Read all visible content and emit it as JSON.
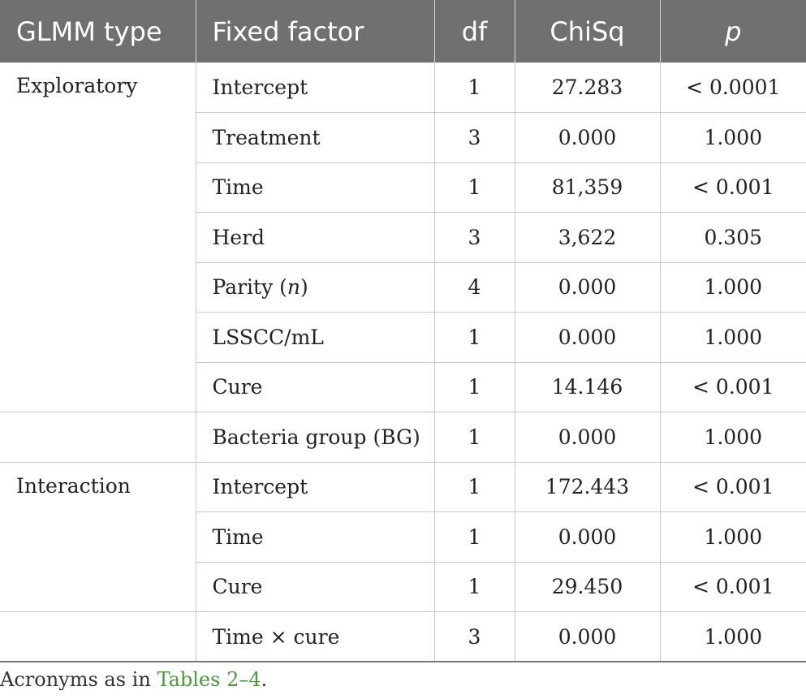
{
  "table": {
    "headers": [
      "GLMM type",
      "Fixed factor",
      "df",
      "ChiSq",
      "p"
    ],
    "groups": [
      {
        "type": "Exploratory",
        "rows": [
          {
            "factor": "Intercept",
            "df": "1",
            "chisq": "27.283",
            "p": "< 0.0001"
          },
          {
            "factor": "Treatment",
            "df": "3",
            "chisq": "0.000",
            "p": "1.000"
          },
          {
            "factor": "Time",
            "df": "1",
            "chisq": "81,359",
            "p": "< 0.001"
          },
          {
            "factor": "Herd",
            "df": "3",
            "chisq": "3,622",
            "p": "0.305"
          },
          {
            "factor_prefix": "Parity (",
            "factor_italic": "n",
            "factor_suffix": ")",
            "df": "4",
            "chisq": "0.000",
            "p": "1.000"
          },
          {
            "factor": "LSSCC/mL",
            "df": "1",
            "chisq": "0.000",
            "p": "1.000"
          },
          {
            "factor": "Cure",
            "df": "1",
            "chisq": "14.146",
            "p": "< 0.001"
          }
        ]
      },
      {
        "type": "",
        "rows": [
          {
            "factor": "Bacteria group (BG)",
            "df": "1",
            "chisq": "0.000",
            "p": "1.000"
          }
        ]
      },
      {
        "type": "Interaction",
        "rows": [
          {
            "factor": "Intercept",
            "df": "1",
            "chisq": "172.443",
            "p": "< 0.001"
          },
          {
            "factor": "Time",
            "df": "1",
            "chisq": "0.000",
            "p": "1.000"
          },
          {
            "factor": "Cure",
            "df": "1",
            "chisq": "29.450",
            "p": "< 0.001"
          }
        ]
      },
      {
        "type": "",
        "rows": [
          {
            "factor": "Time × cure",
            "df": "3",
            "chisq": "0.000",
            "p": "1.000"
          }
        ]
      }
    ]
  },
  "footnote": {
    "prefix": "Acronyms as in ",
    "link": "Tables 2–4",
    "suffix": "."
  }
}
